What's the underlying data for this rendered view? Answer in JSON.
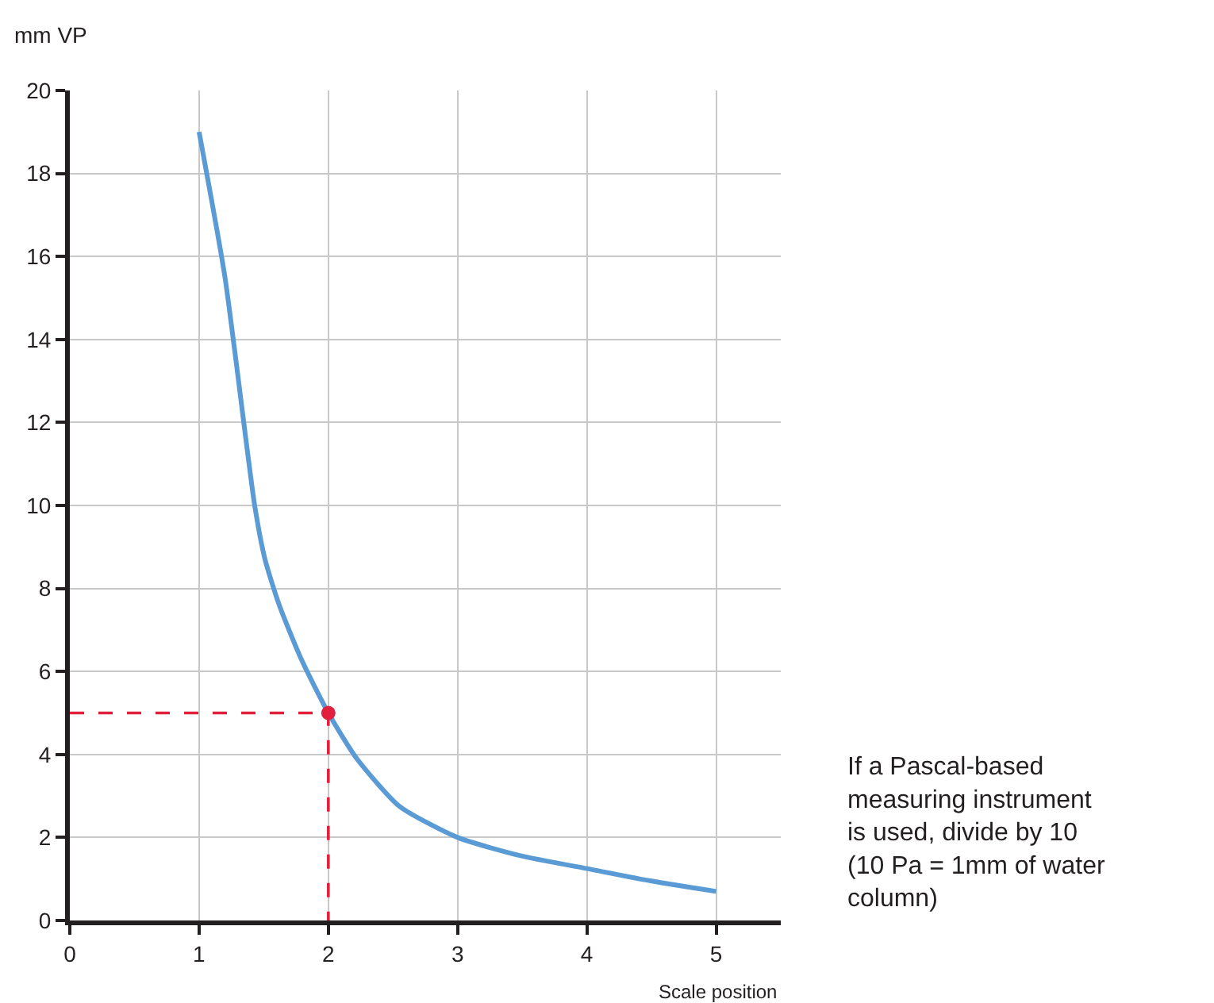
{
  "chart_data": {
    "type": "line",
    "xlabel": "Scale position",
    "ylabel": "mm VP",
    "annotations": [
      "If a Pascal-based measuring instrument is used, divide by 10 (10 Pa = 1mm of water column)"
    ],
    "series": [
      {
        "color": "#5b9bd5",
        "x": [
          1,
          1.2,
          1.43,
          1.51,
          1.62,
          1.79,
          2,
          2.22,
          2.55,
          3,
          3.5,
          4,
          4.5,
          5
        ],
        "values": [
          19,
          15.5,
          10,
          8.7,
          7.6,
          6.3,
          5,
          3.9,
          2.75,
          2,
          1.55,
          1.25,
          0.95,
          0.7
        ]
      },
      {
        "color": "#e0203c",
        "x": [
          0,
          2,
          2
        ],
        "values": [
          5,
          5,
          0
        ],
        "line_style": "dashed"
      },
      {
        "type": "scatter",
        "color": "#e0203c",
        "x": [
          2
        ],
        "values": [
          5
        ],
        "marker": "circle"
      }
    ],
    "xlim": [
      0,
      5.5
    ],
    "xticks": [
      0,
      1,
      2,
      3,
      4,
      5
    ],
    "ylim": [
      0,
      20
    ],
    "yticks": [
      0,
      2,
      4,
      6,
      8,
      10,
      12,
      14,
      16,
      18,
      20
    ],
    "grid": true
  }
}
